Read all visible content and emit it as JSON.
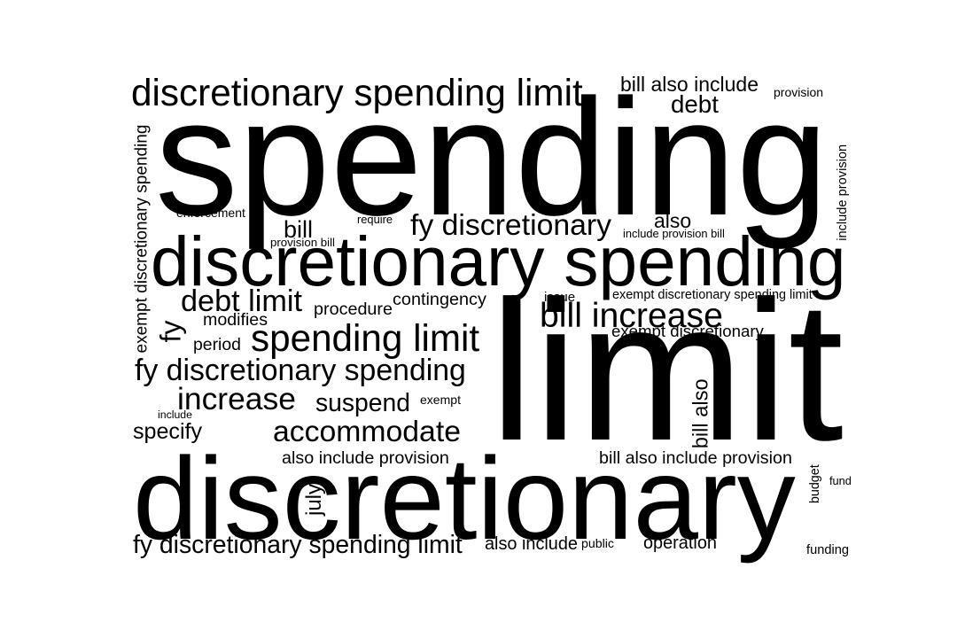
{
  "words": [
    {
      "text": "spending"
    },
    {
      "text": "limit"
    },
    {
      "text": "discretionary"
    },
    {
      "text": "discretionary spending"
    },
    {
      "text": "discretionary spending limit"
    },
    {
      "text": "fy discretionary spending"
    },
    {
      "text": "fy discretionary spending limit"
    },
    {
      "text": "spending limit"
    },
    {
      "text": "accommodate"
    },
    {
      "text": "increase"
    },
    {
      "text": "fy discretionary"
    },
    {
      "text": "bill increase"
    },
    {
      "text": "debt limit"
    },
    {
      "text": "suspend"
    },
    {
      "text": "debt"
    },
    {
      "text": "bill also include"
    },
    {
      "text": "bill also include provision"
    },
    {
      "text": "also include provision"
    },
    {
      "text": "exempt discretionary"
    },
    {
      "text": "exempt discretionary spending limit"
    },
    {
      "text": "exempt discretionary spending"
    },
    {
      "text": "include provision"
    },
    {
      "text": "include provision bill"
    },
    {
      "text": "provision bill"
    },
    {
      "text": "provision"
    },
    {
      "text": "also include"
    },
    {
      "text": "also"
    },
    {
      "text": "bill"
    },
    {
      "text": "bill also"
    },
    {
      "text": "contingency"
    },
    {
      "text": "procedure"
    },
    {
      "text": "modifies"
    },
    {
      "text": "period"
    },
    {
      "text": "specify"
    },
    {
      "text": "operation"
    },
    {
      "text": "enforcement"
    },
    {
      "text": "require"
    },
    {
      "text": "issue"
    },
    {
      "text": "exempt"
    },
    {
      "text": "include"
    },
    {
      "text": "public"
    },
    {
      "text": "fy"
    },
    {
      "text": "july"
    },
    {
      "text": "budget"
    },
    {
      "text": "fund"
    },
    {
      "text": "funding"
    }
  ]
}
